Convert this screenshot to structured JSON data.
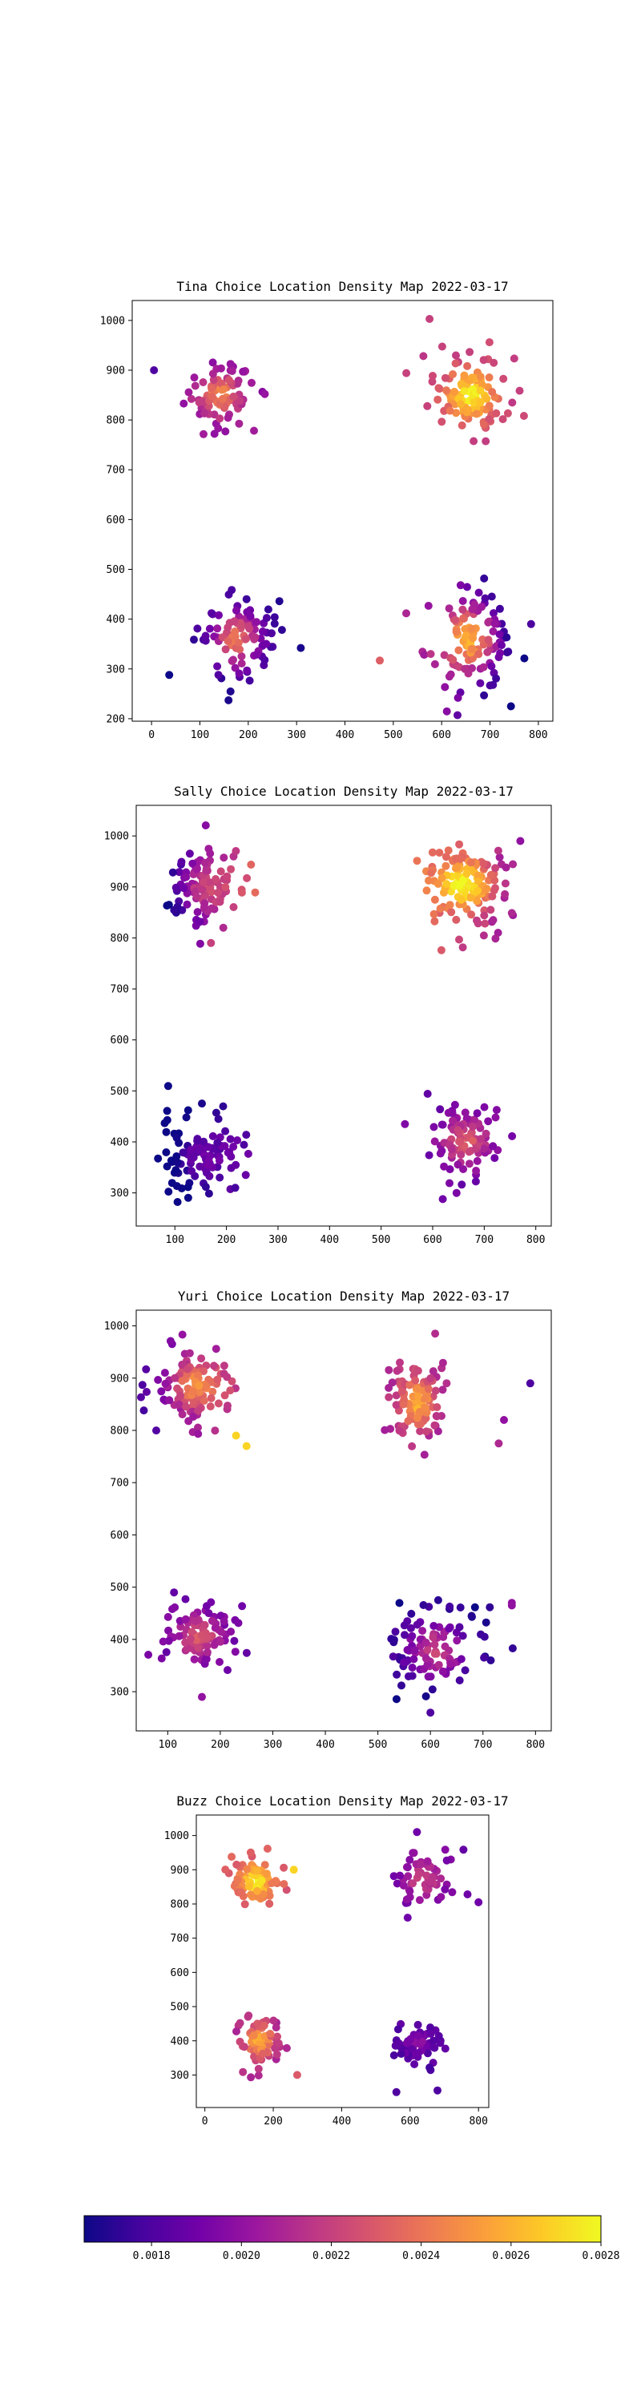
{
  "figure": {
    "colormap": "plasma",
    "colormap_stops": [
      "#0d0887",
      "#46039f",
      "#7201a8",
      "#9c179e",
      "#bd3786",
      "#d8576b",
      "#ed7953",
      "#fb9f3a",
      "#fdca26",
      "#f0f921"
    ]
  },
  "colorbar": {
    "range": [
      0.00165,
      0.0028
    ],
    "ticks": [
      0.0018,
      0.002,
      0.0022,
      0.0024,
      0.0026,
      0.0028
    ],
    "tick_labels": [
      "0.0018",
      "0.0020",
      "0.0022",
      "0.0024",
      "0.0026",
      "0.0028"
    ]
  },
  "chart_data": [
    {
      "type": "scatter",
      "title": "Tina Choice Location Density Map 2022-03-17",
      "xlim": [
        -40,
        830
      ],
      "ylim": [
        195,
        1040
      ],
      "xticks": [
        0,
        100,
        200,
        300,
        400,
        500,
        600,
        700,
        800
      ],
      "yticks": [
        200,
        300,
        400,
        500,
        600,
        700,
        800,
        900,
        1000
      ],
      "grid": false,
      "clusters": [
        {
          "cx": 140,
          "cy": 850,
          "sx": 42,
          "sy": 38,
          "n": 90,
          "density_center": 0.00245,
          "density_edge": 0.002,
          "density_bias_x": 0.0
        },
        {
          "cx": 660,
          "cy": 850,
          "sx": 45,
          "sy": 45,
          "n": 120,
          "density_center": 0.0028,
          "density_edge": 0.0022,
          "density_bias_x": 0.0
        },
        {
          "cx": 175,
          "cy": 360,
          "sx": 48,
          "sy": 55,
          "n": 100,
          "density_center": 0.0024,
          "density_edge": 0.0017,
          "density_bias_x": 0.0
        },
        {
          "cx": 660,
          "cy": 360,
          "sx": 55,
          "sy": 60,
          "n": 120,
          "density_center": 0.0026,
          "density_edge": 0.0018,
          "density_bias_x": -0.3
        }
      ],
      "outliers": [
        [
          5,
          900,
          0.0018
        ],
        [
          575,
          1003,
          0.0022
        ],
        [
          785,
          390,
          0.0018
        ]
      ]
    },
    {
      "type": "scatter",
      "title": "Sally Choice Location Density Map 2022-03-17",
      "xlim": [
        25,
        830
      ],
      "ylim": [
        235,
        1060
      ],
      "xticks": [
        100,
        200,
        300,
        400,
        500,
        600,
        700,
        800
      ],
      "yticks": [
        300,
        400,
        500,
        600,
        700,
        800,
        900,
        1000
      ],
      "grid": false,
      "clusters": [
        {
          "cx": 150,
          "cy": 900,
          "sx": 45,
          "sy": 45,
          "n": 120,
          "density_center": 0.0022,
          "density_edge": 0.0019,
          "density_bias_x": 0.4
        },
        {
          "cx": 665,
          "cy": 905,
          "sx": 50,
          "sy": 45,
          "n": 150,
          "density_center": 0.0028,
          "density_edge": 0.0022,
          "density_bias_x": -0.2
        },
        {
          "cx": 150,
          "cy": 375,
          "sx": 48,
          "sy": 45,
          "n": 110,
          "density_center": 0.0019,
          "density_edge": 0.00168,
          "density_bias_x": 0.2
        },
        {
          "cx": 665,
          "cy": 400,
          "sx": 42,
          "sy": 45,
          "n": 100,
          "density_center": 0.0023,
          "density_edge": 0.0019,
          "density_bias_x": 0.0
        }
      ],
      "outliers": [
        [
          170,
          790,
          0.0022
        ],
        [
          770,
          990,
          0.002
        ]
      ]
    },
    {
      "type": "scatter",
      "title": "Yuri Choice Location Density Map 2022-03-17",
      "xlim": [
        40,
        830
      ],
      "ylim": [
        225,
        1030
      ],
      "xticks": [
        100,
        200,
        300,
        400,
        500,
        600,
        700,
        800
      ],
      "yticks": [
        300,
        400,
        500,
        600,
        700,
        800,
        900,
        1000
      ],
      "grid": false,
      "clusters": [
        {
          "cx": 150,
          "cy": 885,
          "sx": 45,
          "sy": 42,
          "n": 120,
          "density_center": 0.0025,
          "density_edge": 0.002,
          "density_bias_x": 0.2
        },
        {
          "cx": 575,
          "cy": 855,
          "sx": 30,
          "sy": 45,
          "n": 110,
          "density_center": 0.0026,
          "density_edge": 0.0021,
          "density_bias_x": 0.0
        },
        {
          "cx": 160,
          "cy": 405,
          "sx": 38,
          "sy": 35,
          "n": 100,
          "density_center": 0.0023,
          "density_edge": 0.0019,
          "density_bias_x": 0.0
        },
        {
          "cx": 610,
          "cy": 380,
          "sx": 55,
          "sy": 55,
          "n": 110,
          "density_center": 0.0022,
          "density_edge": 0.00168,
          "density_bias_x": 0.0
        }
      ],
      "outliers": [
        [
          790,
          890,
          0.0018
        ],
        [
          740,
          820,
          0.002
        ],
        [
          730,
          775,
          0.0021
        ],
        [
          755,
          470,
          0.002
        ],
        [
          755,
          465,
          0.002
        ],
        [
          230,
          790,
          0.0027
        ],
        [
          250,
          770,
          0.0027
        ],
        [
          165,
          290,
          0.002
        ],
        [
          600,
          260,
          0.0018
        ]
      ]
    },
    {
      "type": "scatter",
      "title": "Buzz Choice Location Density Map 2022-03-17",
      "xlim": [
        -25,
        830
      ],
      "ylim": [
        205,
        1060
      ],
      "xticks": [
        0,
        200,
        400,
        600,
        800
      ],
      "yticks": [
        300,
        400,
        500,
        600,
        700,
        800,
        900,
        1000
      ],
      "grid": false,
      "clusters": [
        {
          "cx": 150,
          "cy": 865,
          "sx": 40,
          "sy": 40,
          "n": 90,
          "density_center": 0.0028,
          "density_edge": 0.0023,
          "density_bias_x": 0.0
        },
        {
          "cx": 640,
          "cy": 870,
          "sx": 55,
          "sy": 60,
          "n": 60,
          "density_center": 0.0022,
          "density_edge": 0.0019,
          "density_bias_x": 0.0
        },
        {
          "cx": 160,
          "cy": 400,
          "sx": 38,
          "sy": 45,
          "n": 80,
          "density_center": 0.0026,
          "density_edge": 0.0021,
          "density_bias_x": 0.0
        },
        {
          "cx": 625,
          "cy": 390,
          "sx": 40,
          "sy": 40,
          "n": 55,
          "density_center": 0.00195,
          "density_edge": 0.0018,
          "density_bias_x": 0.0
        }
      ],
      "outliers": [
        [
          260,
          900,
          0.0027
        ],
        [
          270,
          300,
          0.0023
        ],
        [
          560,
          250,
          0.0018
        ],
        [
          680,
          255,
          0.0018
        ],
        [
          800,
          805,
          0.0019
        ],
        [
          620,
          1010,
          0.0019
        ]
      ]
    }
  ]
}
